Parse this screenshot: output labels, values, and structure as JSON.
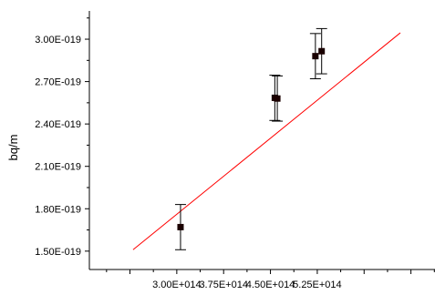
{
  "chart_data": {
    "type": "scatter",
    "xlabel": "",
    "ylabel": "bq/m",
    "xlim": [
      160000000000000,
      715000000000000
    ],
    "ylim": [
      1.37e-19,
      3.2e-19
    ],
    "x_ticks": [
      {
        "value": 300000000000000,
        "label": "3.00E+014"
      },
      {
        "value": 375000000000000,
        "label": "3.75E+014"
      },
      {
        "value": 450000000000000,
        "label": "4.50E+014"
      },
      {
        "value": 525000000000000,
        "label": "5.25E+014"
      }
    ],
    "y_ticks": [
      {
        "value": 1.5e-19,
        "label": "1.50E-019"
      },
      {
        "value": 1.8e-19,
        "label": "1.80E-019"
      },
      {
        "value": 2.1e-19,
        "label": "2.10E-019"
      },
      {
        "value": 2.4e-19,
        "label": "2.40E-019"
      },
      {
        "value": 2.7e-19,
        "label": "2.70E-019"
      },
      {
        "value": 3e-19,
        "label": "3.00E-019"
      }
    ],
    "grid": false,
    "points": [
      {
        "x": 306000000000000,
        "y": 1.67e-19,
        "err": 1.6e-20
      },
      {
        "x": 457000000000000,
        "y": 2.585e-19,
        "err": 1.6e-20
      },
      {
        "x": 461000000000000,
        "y": 2.58e-19,
        "err": 1.6e-20
      },
      {
        "x": 522000000000000,
        "y": 2.88e-19,
        "err": 1.6e-20
      },
      {
        "x": 532000000000000,
        "y": 2.915e-19,
        "err": 1.6e-20
      }
    ],
    "fit_line": {
      "x": [
        230000000000000,
        658000000000000
      ],
      "y": [
        1.51e-19,
        3.045e-19
      ]
    },
    "colors": {
      "points": "#1a0000",
      "fit_line": "#ff0000",
      "axes": "#000000"
    }
  }
}
